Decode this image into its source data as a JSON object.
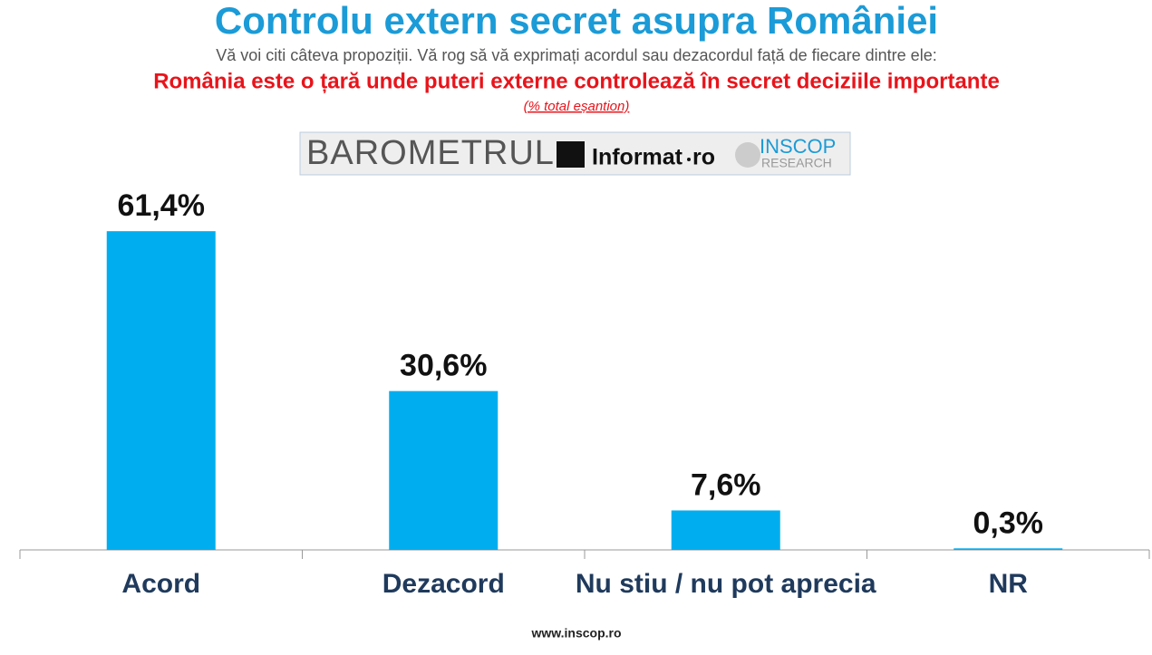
{
  "chart_data": {
    "type": "bar",
    "title": "Controlu extern secret asupra României",
    "subtitle": "Vă voi citi câteva propoziții. Vă rog să vă exprimați acordul sau dezacordul față de fiecare dintre ele:",
    "question": "România este o țară unde puteri externe controlează în secret deciziile importante",
    "note": "(% total eșantion)",
    "logo": {
      "barometer": "BAROMETRUL",
      "partner": "Informat",
      "partner_suffix": "ro",
      "brand": "INSCOP",
      "brand_sub": "RESEARCH"
    },
    "footer": "www.inscop.ro",
    "categories": [
      "Acord",
      "Dezacord",
      "Nu stiu / nu pot aprecia",
      "NR"
    ],
    "values": [
      61.4,
      30.6,
      7.6,
      0.3
    ],
    "value_labels": [
      "61,4%",
      "30,6%",
      "7,6%",
      "0,3%"
    ],
    "color": "#00aeef"
  }
}
